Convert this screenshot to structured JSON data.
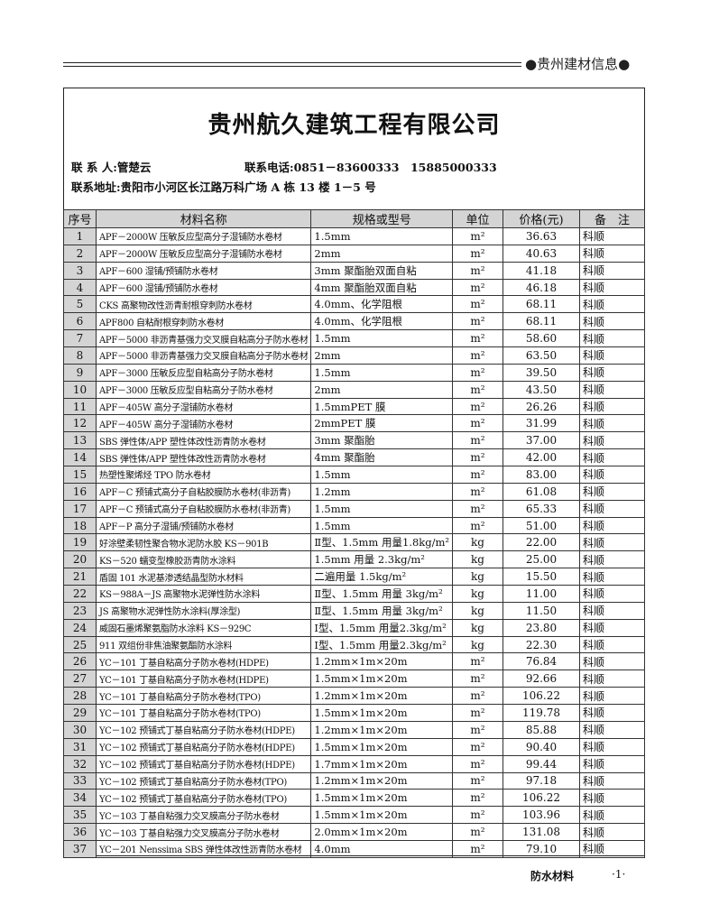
{
  "masthead": "●贵州建材信息●",
  "company": "贵州航久建筑工程有限公司",
  "contact_person": "联 系 人:管楚云",
  "contact_phone": "联系电话:0851－83600333　15885000333",
  "contact_address": "联系地址:贵阳市小河区长江路万科广场 A 栋 13 楼 1－5 号",
  "table": {
    "headers": [
      "序号",
      "材料名称",
      "规格或型号",
      "单位",
      "价格(元)",
      "备　注"
    ],
    "rows": [
      [
        "1",
        "APF－2000W 压敏反应型高分子湿铺防水卷材",
        "1.5mm",
        "m²",
        "36.63",
        "科顺"
      ],
      [
        "2",
        "APF－2000W 压敏反应型高分子湿铺防水卷材",
        "2mm",
        "m²",
        "40.63",
        "科顺"
      ],
      [
        "3",
        "APF－600 湿铺/预铺防水卷材",
        "3mm 聚酯胎双面自粘",
        "m²",
        "41.18",
        "科顺"
      ],
      [
        "4",
        "APF－600 湿铺/预铺防水卷材",
        "4mm 聚酯胎双面自粘",
        "m²",
        "46.18",
        "科顺"
      ],
      [
        "5",
        "CKS 高聚物改性沥青耐根穿刺防水卷材",
        "4.0mm、化学阻根",
        "m²",
        "68.11",
        "科顺"
      ],
      [
        "6",
        "APF800 自粘耐根穿刺防水卷材",
        "4.0mm、化学阻根",
        "m²",
        "68.11",
        "科顺"
      ],
      [
        "7",
        "APF－5000 非沥青基强力交叉膜自粘高分子防水卷材",
        "1.5mm",
        "m²",
        "58.60",
        "科顺"
      ],
      [
        "8",
        "APF－5000 非沥青基强力交叉膜自粘高分子防水卷材",
        "2mm",
        "m²",
        "63.50",
        "科顺"
      ],
      [
        "9",
        "APF－3000 压敏反应型自粘高分子防水卷材",
        "1.5mm",
        "m²",
        "39.50",
        "科顺"
      ],
      [
        "10",
        "APF－3000 压敏反应型自粘高分子防水卷材",
        "2mm",
        "m²",
        "43.50",
        "科顺"
      ],
      [
        "11",
        "APF－405W 高分子湿铺防水卷材",
        "1.5mmPET 膜",
        "m²",
        "26.26",
        "科顺"
      ],
      [
        "12",
        "APF－405W 高分子湿铺防水卷材",
        "2mmPET 膜",
        "m²",
        "31.99",
        "科顺"
      ],
      [
        "13",
        "SBS 弹性体/APP 塑性体改性沥青防水卷材",
        "3mm 聚酯胎",
        "m²",
        "37.00",
        "科顺"
      ],
      [
        "14",
        "SBS 弹性体/APP 塑性体改性沥青防水卷材",
        "4mm 聚酯胎",
        "m²",
        "42.00",
        "科顺"
      ],
      [
        "15",
        "热塑性聚烯烃 TPO 防水卷材",
        "1.5mm",
        "m²",
        "83.00",
        "科顺"
      ],
      [
        "16",
        "APF－C 预铺式高分子自粘胶膜防水卷材(非沥青)",
        "1.2mm",
        "m²",
        "61.08",
        "科顺"
      ],
      [
        "17",
        "APF－C 预铺式高分子自粘胶膜防水卷材(非沥青)",
        "1.5mm",
        "m²",
        "65.33",
        "科顺"
      ],
      [
        "18",
        "APF－P 高分子湿铺/预铺防水卷材",
        "1.5mm",
        "m²",
        "51.00",
        "科顺"
      ],
      [
        "19",
        "好涂壁柔韧性聚合物水泥防水胶 KS－901B",
        "Ⅱ型、1.5mm 用量1.8kg/m²",
        "kg",
        "22.00",
        "科顺"
      ],
      [
        "20",
        "KS－520 蠕变型橡胶沥青防水涂料",
        "1.5mm 用量 2.3kg/m²",
        "kg",
        "25.00",
        "科顺"
      ],
      [
        "21",
        "盾固 101 水泥基渗透结晶型防水材料",
        "二遍用量 1.5kg/m²",
        "kg",
        "15.50",
        "科顺"
      ],
      [
        "22",
        "KS－988A－JS 高聚物水泥弹性防水涂料",
        "Ⅱ型、1.5mm 用量 3kg/m²",
        "kg",
        "11.00",
        "科顺"
      ],
      [
        "23",
        "JS 高聚物水泥弹性防水涂料(厚涂型)",
        "Ⅱ型、1.5mm 用量 3kg/m²",
        "kg",
        "11.50",
        "科顺"
      ],
      [
        "24",
        "威固石墨烯聚氨脂防水涂料 KS－929C",
        "Ⅰ型、1.5mm 用量2.3kg/m²",
        "kg",
        "23.80",
        "科顺"
      ],
      [
        "25",
        "911 双组份非焦油聚氨酯防水涂料",
        "Ⅰ型、1.5mm 用量2.3kg/m²",
        "kg",
        "22.30",
        "科顺"
      ],
      [
        "26",
        "YC－101 丁基自粘高分子防水卷材(HDPE)",
        "1.2mm×1m×20m",
        "m²",
        "76.84",
        "科顺"
      ],
      [
        "27",
        "YC－101 丁基自粘高分子防水卷材(HDPE)",
        "1.5mm×1m×20m",
        "m²",
        "92.66",
        "科顺"
      ],
      [
        "28",
        "YC－101 丁基自粘高分子防水卷材(TPO)",
        "1.2mm×1m×20m",
        "m²",
        "106.22",
        "科顺"
      ],
      [
        "29",
        "YC－101 丁基自粘高分子防水卷材(TPO)",
        "1.5mm×1m×20m",
        "m²",
        "119.78",
        "科顺"
      ],
      [
        "30",
        "YC－102 预铺式丁基自粘高分子防水卷材(HDPE)",
        "1.2mm×1m×20m",
        "m²",
        "85.88",
        "科顺"
      ],
      [
        "31",
        "YC－102 预铺式丁基自粘高分子防水卷材(HDPE)",
        "1.5mm×1m×20m",
        "m²",
        "90.40",
        "科顺"
      ],
      [
        "32",
        "YC－102 预铺式丁基自粘高分子防水卷材(HDPE)",
        "1.7mm×1m×20m",
        "m²",
        "99.44",
        "科顺"
      ],
      [
        "33",
        "YC－102 预铺式丁基自粘高分子防水卷材(TPO)",
        "1.2mm×1m×20m",
        "m²",
        "97.18",
        "科顺"
      ],
      [
        "34",
        "YC－102 预铺式丁基自粘高分子防水卷材(TPO)",
        "1.5mm×1m×20m",
        "m²",
        "106.22",
        "科顺"
      ],
      [
        "35",
        "YC－103 丁基自粘强力交叉膜高分子防水卷材",
        "1.5mm×1m×20m",
        "m²",
        "103.96",
        "科顺"
      ],
      [
        "36",
        "YC－103 丁基自粘强力交叉膜高分子防水卷材",
        "2.0mm×1m×20m",
        "m²",
        "131.08",
        "科顺"
      ],
      [
        "37",
        "YC－201 Nenssima SBS 弹性体改性沥青防水卷材",
        "4.0mm",
        "m²",
        "79.10",
        "科顺"
      ]
    ]
  },
  "footer": {
    "section": "防水材料",
    "page": "·1·"
  }
}
